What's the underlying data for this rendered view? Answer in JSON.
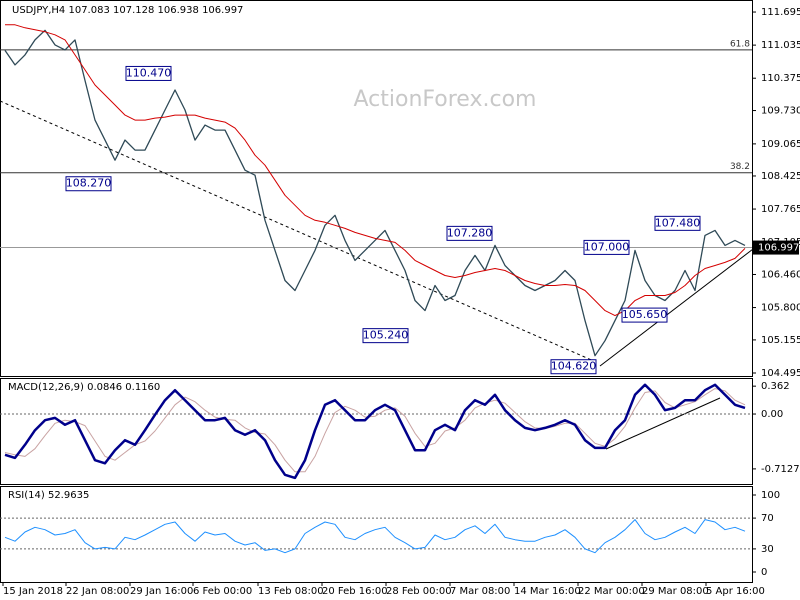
{
  "chart_data": [
    {
      "type": "line",
      "title": "USDJPY,H4  107.083 107.128 106.938 106.997",
      "watermark": "ActionForex.com",
      "xlim": [
        -0.5,
        74.7
      ],
      "ylim": [
        104.435,
        111.935
      ],
      "yticks": [
        111.695,
        111.035,
        110.375,
        {
          "value": 109.73,
          "label": "109.730"
        },
        109.065,
        108.425,
        107.765,
        107.105,
        {
          "value": 106.46,
          "label": "106.460"
        },
        {
          "value": 105.8,
          "label": "105.800"
        },
        105.155,
        104.495
      ],
      "series": [
        {
          "color": "#2f4a57",
          "width": 1.3,
          "values": [
            110.93,
            110.64,
            110.84,
            111.14,
            111.33,
            111.04,
            110.94,
            111.14,
            110.33,
            109.54,
            109.14,
            108.74,
            109.14,
            108.94,
            108.94,
            109.34,
            109.74,
            110.14,
            109.74,
            109.14,
            109.44,
            109.34,
            109.34,
            108.94,
            108.54,
            108.44,
            107.54,
            106.94,
            106.34,
            106.14,
            106.54,
            106.94,
            107.44,
            107.64,
            107.14,
            106.74,
            106.94,
            107.14,
            107.34,
            106.94,
            106.54,
            105.94,
            105.74,
            106.24,
            105.94,
            106.04,
            106.54,
            106.84,
            106.54,
            107.04,
            106.64,
            106.44,
            106.24,
            106.14,
            106.24,
            106.34,
            106.54,
            106.34,
            105.54,
            104.84,
            105.14,
            105.54,
            105.94,
            106.94,
            106.34,
            106.04,
            105.94,
            106.14,
            106.54,
            106.14,
            107.24,
            107.34,
            107.04,
            107.14,
            107.04
          ]
        },
        {
          "color": "#d40000",
          "width": 1,
          "values": [
            111.44,
            111.44,
            111.38,
            111.34,
            111.3,
            111.24,
            111.14,
            110.84,
            110.54,
            110.24,
            110.04,
            109.84,
            109.64,
            109.54,
            109.54,
            109.58,
            109.6,
            109.64,
            109.64,
            109.64,
            109.58,
            109.54,
            109.5,
            109.38,
            109.14,
            108.84,
            108.64,
            108.34,
            108.04,
            107.84,
            107.64,
            107.54,
            107.5,
            107.44,
            107.38,
            107.3,
            107.24,
            107.18,
            107.14,
            107.1,
            106.94,
            106.74,
            106.64,
            106.54,
            106.44,
            106.4,
            106.44,
            106.5,
            106.54,
            106.58,
            106.54,
            106.44,
            106.34,
            106.28,
            106.24,
            106.24,
            106.26,
            106.24,
            106.14,
            105.94,
            105.74,
            105.64,
            105.74,
            105.94,
            106.04,
            106.04,
            106.04,
            106.1,
            106.24,
            106.44,
            106.58,
            106.64,
            106.7,
            106.78,
            106.98
          ]
        }
      ],
      "levels": [
        {
          "label": "61.8",
          "value": 110.94
        },
        {
          "label": "38.2",
          "value": 108.49
        }
      ],
      "last_price": 106.997,
      "annotations": [
        {
          "value": 110.47,
          "label": "110.470"
        },
        {
          "value": 108.27,
          "label": "108.270"
        },
        {
          "value": 107.28,
          "label": "107.280"
        },
        {
          "value": 105.24,
          "label": "105.240"
        },
        {
          "value": 104.62,
          "label": "104.620"
        },
        {
          "value": 107.0,
          "label": "107.000"
        },
        {
          "value": 105.65,
          "label": "105.650"
        },
        {
          "value": 107.48,
          "label": "107.480"
        }
      ]
    },
    {
      "type": "line",
      "title": "MACD(12,26,9) 0.0846 0.1160",
      "xlim": [
        -0.5,
        74.7
      ],
      "ylim": [
        -0.909,
        0.468
      ],
      "yticks": [
        0.362,
        {
          "value": 0,
          "label": "0.00"
        },
        -0.7127
      ],
      "hlines": [
        0
      ],
      "series": [
        {
          "color": "#c9a3a3",
          "width": 1,
          "values": [
            -0.5,
            -0.53,
            -0.55,
            -0.45,
            -0.28,
            -0.12,
            -0.08,
            -0.1,
            -0.15,
            -0.35,
            -0.55,
            -0.6,
            -0.5,
            -0.4,
            -0.35,
            -0.22,
            -0.05,
            0.12,
            0.22,
            0.16,
            0.05,
            -0.04,
            -0.07,
            -0.08,
            -0.18,
            -0.24,
            -0.26,
            -0.4,
            -0.6,
            -0.75,
            -0.75,
            -0.55,
            -0.25,
            0.02,
            0.1,
            0.05,
            -0.04,
            -0.03,
            0.05,
            0.08,
            -0.03,
            -0.25,
            -0.42,
            -0.38,
            -0.22,
            -0.18,
            -0.08,
            0.08,
            0.14,
            0.18,
            0.14,
            0.02,
            -0.1,
            -0.18,
            -0.19,
            -0.16,
            -0.12,
            -0.12,
            -0.25,
            -0.38,
            -0.42,
            -0.32,
            -0.16,
            0.08,
            0.28,
            0.3,
            0.15,
            0.08,
            0.12,
            0.16,
            0.25,
            0.33,
            0.3,
            0.18,
            0.12
          ]
        },
        {
          "color": "#00008b",
          "width": 2.5,
          "values": [
            -0.53,
            -0.57,
            -0.4,
            -0.21,
            -0.08,
            -0.05,
            -0.14,
            -0.08,
            -0.34,
            -0.6,
            -0.64,
            -0.47,
            -0.34,
            -0.4,
            -0.21,
            -0.01,
            0.18,
            0.31,
            0.18,
            0.05,
            -0.08,
            -0.08,
            -0.05,
            -0.21,
            -0.27,
            -0.21,
            -0.34,
            -0.6,
            -0.79,
            -0.83,
            -0.6,
            -0.21,
            0.12,
            0.18,
            0.05,
            -0.08,
            -0.08,
            0.05,
            0.12,
            0.05,
            -0.21,
            -0.47,
            -0.47,
            -0.21,
            -0.14,
            -0.21,
            0.05,
            0.18,
            0.12,
            0.25,
            0.05,
            -0.08,
            -0.18,
            -0.21,
            -0.18,
            -0.14,
            -0.08,
            -0.14,
            -0.34,
            -0.44,
            -0.44,
            -0.21,
            -0.08,
            0.25,
            0.38,
            0.25,
            0.05,
            0.08,
            0.18,
            0.18,
            0.31,
            0.38,
            0.25,
            0.12,
            0.08
          ]
        }
      ]
    },
    {
      "type": "line",
      "title": "RSI(14) 52.9635",
      "xlim": [
        -0.5,
        74.7
      ],
      "ylim": [
        -13,
        111.7
      ],
      "yticks": [
        100,
        70,
        30,
        0
      ],
      "hlines": [
        70,
        30
      ],
      "series": [
        {
          "color": "#1e90ff",
          "width": 1,
          "values": [
            45,
            40,
            52,
            58,
            55,
            48,
            50,
            55,
            38,
            30,
            32,
            30,
            45,
            42,
            48,
            55,
            62,
            65,
            50,
            40,
            52,
            48,
            50,
            40,
            35,
            38,
            28,
            30,
            25,
            30,
            50,
            58,
            65,
            62,
            45,
            42,
            50,
            55,
            58,
            45,
            38,
            30,
            32,
            48,
            42,
            45,
            55,
            60,
            50,
            62,
            45,
            42,
            40,
            40,
            45,
            48,
            55,
            45,
            30,
            25,
            38,
            45,
            55,
            68,
            50,
            42,
            45,
            52,
            58,
            50,
            68,
            65,
            55,
            58,
            52.96
          ]
        }
      ],
      "xticks": [
        {
          "value": -0.2,
          "label": "15 Jan 2018"
        },
        {
          "value": 6.1,
          "label": "22 Jan 08:00"
        },
        {
          "value": 12.5,
          "label": "29 Jan 16:00"
        },
        {
          "value": 18.8,
          "label": "6 Feb 00:00"
        },
        {
          "value": 25.3,
          "label": "13 Feb 08:00"
        },
        {
          "value": 31.7,
          "label": "20 Feb 16:00"
        },
        {
          "value": 38.1,
          "label": "28 Feb 00:00"
        },
        {
          "value": 44.5,
          "label": "7 Mar 08:00"
        },
        {
          "value": 50.9,
          "label": "14 Mar 16:00"
        },
        {
          "value": 57.3,
          "label": "22 Mar 00:00"
        },
        {
          "value": 63.7,
          "label": "29 Mar 08:00"
        },
        {
          "value": 70.1,
          "label": "5 Apr 16:00"
        }
      ]
    }
  ]
}
